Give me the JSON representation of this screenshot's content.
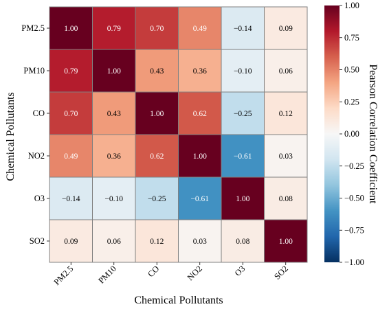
{
  "chart_data": {
    "type": "heatmap",
    "xlabel": "Chemical Pollutants",
    "ylabel": "Chemical Pollutants",
    "x_categories": [
      "PM2.5",
      "PM10",
      "CO",
      "NO2",
      "O3",
      "SO2"
    ],
    "y_categories": [
      "PM2.5",
      "PM10",
      "CO",
      "NO2",
      "O3",
      "SO2"
    ],
    "values": [
      [
        1.0,
        0.79,
        0.7,
        0.49,
        -0.14,
        0.09
      ],
      [
        0.79,
        1.0,
        0.43,
        0.36,
        -0.1,
        0.06
      ],
      [
        0.7,
        0.43,
        1.0,
        0.62,
        -0.25,
        0.12
      ],
      [
        0.49,
        0.36,
        0.62,
        1.0,
        -0.61,
        0.03
      ],
      [
        -0.14,
        -0.1,
        -0.25,
        -0.61,
        1.0,
        0.08
      ],
      [
        0.09,
        0.06,
        0.12,
        0.03,
        0.08,
        1.0
      ]
    ],
    "cell_labels": [
      [
        "1.00",
        "0.79",
        "0.70",
        "0.49",
        "−0.14",
        "0.09"
      ],
      [
        "0.79",
        "1.00",
        "0.43",
        "0.36",
        "−0.10",
        "0.06"
      ],
      [
        "0.70",
        "0.43",
        "1.00",
        "0.62",
        "−0.25",
        "0.12"
      ],
      [
        "0.49",
        "0.36",
        "0.62",
        "1.00",
        "−0.61",
        "0.03"
      ],
      [
        "−0.14",
        "−0.10",
        "−0.25",
        "−0.61",
        "1.00",
        "0.08"
      ],
      [
        "0.09",
        "0.06",
        "0.12",
        "0.03",
        "0.08",
        "1.00"
      ]
    ],
    "colorbar": {
      "label": "Pearson Correlation Coefficient",
      "range": [
        -1.0,
        1.0
      ],
      "colormap": "RdBu_r",
      "ticks": [
        1.0,
        0.75,
        0.5,
        0.25,
        0.0,
        -0.25,
        -0.5,
        -0.75,
        -1.0
      ],
      "tick_labels": [
        "1.00",
        "0.75",
        "0.50",
        "0.25",
        "0.00",
        "−0.25",
        "−0.50",
        "−0.75",
        "−1.00"
      ]
    },
    "cell_border_color": "#808080",
    "colors": {
      "neg_strong": "#053061",
      "neutral": "#f7f7f7",
      "pos_strong": "#67001f"
    }
  }
}
